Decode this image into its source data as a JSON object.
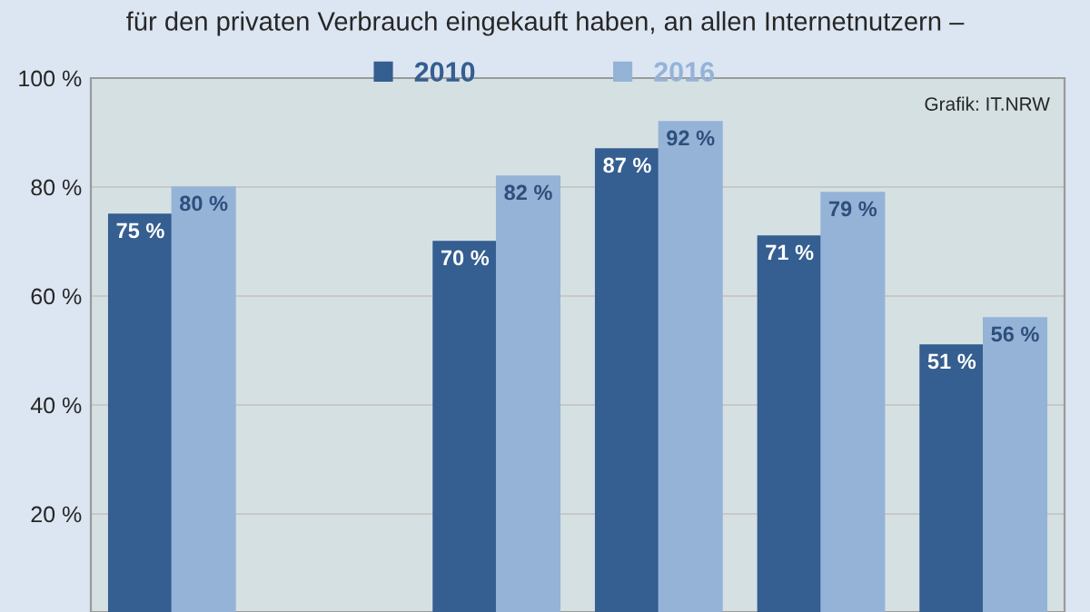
{
  "chart_data": {
    "type": "bar",
    "title": "für den privaten Verbrauch eingekauft haben, an allen Internetnutzern –",
    "categories": [
      null,
      null,
      null,
      null,
      null,
      null
    ],
    "series": [
      {
        "name": "2010",
        "color": "#355e91",
        "values": [
          75,
          null,
          70,
          87,
          71,
          51
        ],
        "value_labels": [
          "75 %",
          null,
          "70 %",
          "87 %",
          "71 %",
          "51 %"
        ]
      },
      {
        "name": "2016",
        "color": "#95b3d7",
        "values": [
          80,
          null,
          82,
          92,
          79,
          56
        ],
        "value_labels": [
          "80 %",
          null,
          "82 %",
          "92 %",
          "79 %",
          "56 %"
        ]
      }
    ],
    "ylim": [
      2,
      100
    ],
    "yticks": [
      {
        "value": 20,
        "label": "20 %"
      },
      {
        "value": 40,
        "label": "40 %"
      },
      {
        "value": 60,
        "label": "60 %"
      },
      {
        "value": 80,
        "label": "80 %"
      },
      {
        "value": 100,
        "label": "100 %"
      }
    ],
    "grid": "y",
    "legend": "top",
    "annotations": [
      "Grafik: IT.NRW"
    ]
  }
}
